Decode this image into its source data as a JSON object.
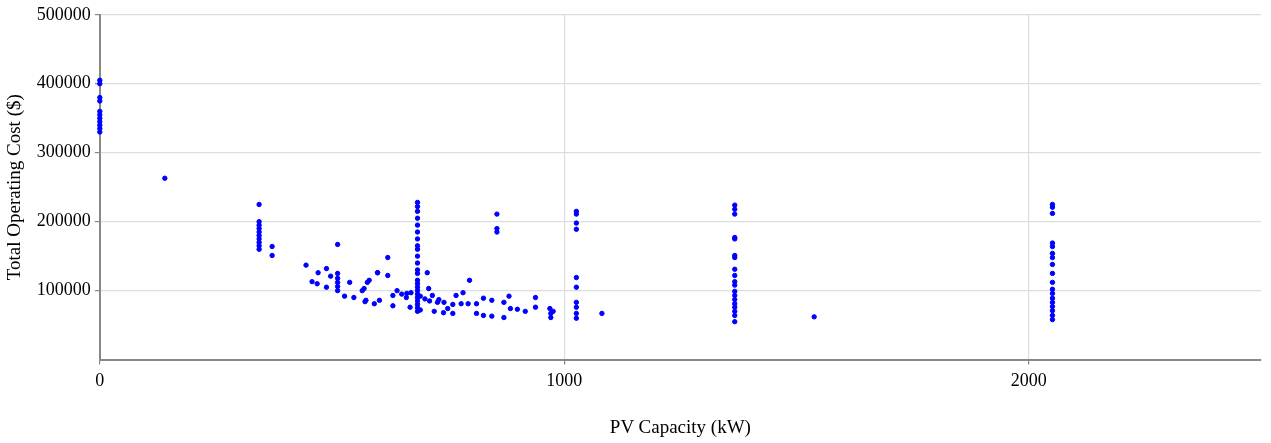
{
  "chart_data": {
    "type": "scatter",
    "xlabel": "PV Capacity (kW)",
    "ylabel": "Total Operating Cost ($)",
    "xlim": [
      0,
      2500
    ],
    "xticks": [
      0,
      1000,
      2000
    ],
    "ylim": [
      0,
      500000
    ],
    "yticks": [
      100000,
      200000,
      300000,
      400000,
      500000
    ],
    "grid": true,
    "legend": false,
    "marker": "circle",
    "series": [
      {
        "color": "#0000ff",
        "x": [
          0,
          0,
          0,
          0,
          0,
          0,
          0,
          0,
          0,
          0,
          0,
          140,
          343,
          343,
          343,
          343,
          343,
          343,
          343,
          343,
          343,
          343,
          371,
          371,
          684,
          684,
          684,
          684,
          684,
          684,
          684,
          684,
          684,
          684,
          684,
          684,
          684,
          684,
          684,
          684,
          684,
          684,
          684,
          684,
          684,
          684,
          684,
          855,
          855,
          855,
          1026,
          1026,
          1026,
          1026,
          1026,
          1026,
          1026,
          1026,
          1026,
          1026,
          1081,
          1367,
          1367,
          1367,
          1367,
          1367,
          1367,
          1367,
          1367,
          1367,
          1367,
          1367,
          1367,
          1367,
          1367,
          1367,
          1367,
          1367,
          1367,
          1367,
          1538,
          2051,
          2051,
          2051,
          2051,
          2051,
          2051,
          2051,
          2051,
          2051,
          2051,
          2051,
          2051,
          2051,
          2051,
          2051,
          2051,
          2051,
          2051,
          444,
          457,
          468,
          470,
          488,
          497,
          488,
          512,
          512,
          512,
          512,
          512,
          512,
          527,
          538,
          547,
          565,
          571,
          580,
          591,
          598,
          569,
          576,
          620,
          598,
          620,
          573,
          602,
          631,
          661,
          631,
          668,
          705,
          708,
          716,
          727,
          741,
          749,
          767,
          778,
          782,
          796,
          793,
          811,
          811,
          826,
          826,
          844,
          844,
          870,
          870,
          881,
          884,
          899,
          916,
          938,
          938,
          969,
          971,
          976,
          971,
          690,
          720,
          740,
          760,
          640,
          650,
          660,
          670,
          690,
          700,
          710,
          730,
          760
        ],
        "values": [
          405000,
          400000,
          380000,
          375000,
          360000,
          355000,
          350000,
          345000,
          340000,
          335000,
          330000,
          263000,
          225000,
          200000,
          195000,
          190000,
          185000,
          180000,
          175000,
          170000,
          165000,
          160000,
          164000,
          151000,
          228000,
          222000,
          215000,
          205000,
          195000,
          185000,
          175000,
          165000,
          160000,
          150000,
          140000,
          130000,
          125000,
          115000,
          110000,
          105000,
          100000,
          95000,
          90000,
          85000,
          80000,
          75000,
          70000,
          211000,
          190000,
          185000,
          215000,
          211000,
          198000,
          189000,
          119000,
          105000,
          83000,
          76000,
          67000,
          60000,
          67000,
          224000,
          218000,
          211000,
          177000,
          175000,
          151000,
          148000,
          131000,
          122000,
          113000,
          108000,
          99000,
          93000,
          87000,
          81000,
          76000,
          70000,
          64000,
          55000,
          62000,
          225000,
          221000,
          212000,
          169000,
          164000,
          154000,
          148000,
          138000,
          125000,
          112000,
          102000,
          96000,
          89000,
          83000,
          77000,
          71000,
          64000,
          58000,
          137000,
          113000,
          110000,
          126000,
          132000,
          121000,
          105000,
          167000,
          125000,
          118000,
          112000,
          106000,
          100000,
          92000,
          112000,
          90000,
          100000,
          84000,
          115000,
          81000,
          126000,
          103000,
          112000,
          148000,
          126000,
          122000,
          86000,
          86000,
          93000,
          96000,
          78000,
          76000,
          126000,
          103000,
          93000,
          83000,
          83000,
          74000,
          93000,
          81000,
          97000,
          115000,
          81000,
          81000,
          67000,
          89000,
          64000,
          86000,
          63000,
          83000,
          61000,
          92000,
          74000,
          73000,
          70000,
          90000,
          76000,
          74000,
          67000,
          70000,
          61000,
          72000,
          70000,
          68000,
          67000,
          100000,
          95000,
          90000,
          97000,
          92000,
          88000,
          85000,
          87000,
          80000
        ]
      }
    ]
  }
}
